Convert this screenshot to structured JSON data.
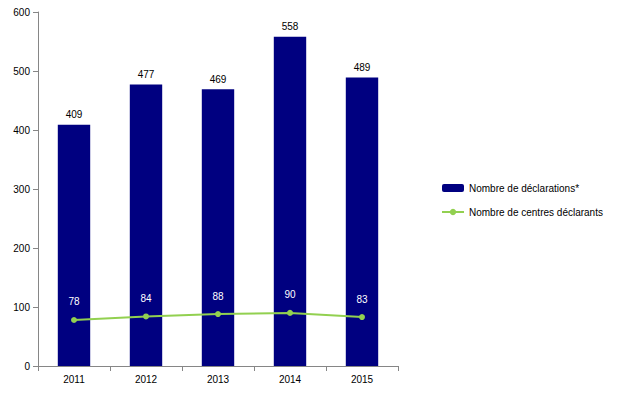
{
  "chart_data": {
    "type": "bar",
    "categories": [
      "2011",
      "2012",
      "2013",
      "2014",
      "2015"
    ],
    "series": [
      {
        "name": "Nombre de déclarations*",
        "type": "bar",
        "color": "#000080",
        "values": [
          409,
          477,
          469,
          558,
          489
        ]
      },
      {
        "name": "Nombre de centres déclarants",
        "type": "line",
        "color": "#92d050",
        "marker": "circle",
        "values": [
          78,
          84,
          88,
          90,
          83
        ]
      }
    ],
    "ylim": [
      0,
      600
    ],
    "yticks": [
      0,
      100,
      200,
      300,
      400,
      500,
      600
    ],
    "grid": false,
    "legend": "right",
    "data_labels": true
  }
}
